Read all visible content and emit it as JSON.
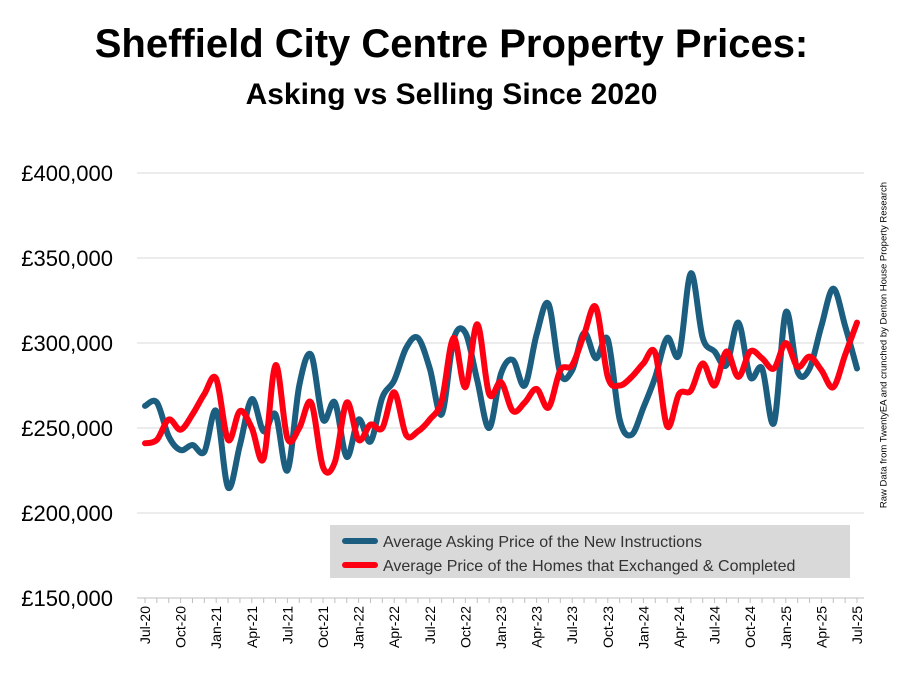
{
  "chart_data": {
    "type": "line",
    "title": "Sheffield City Centre Property Prices:",
    "subtitle": "Asking vs Selling Since 2020",
    "xlabel": "",
    "ylabel": "",
    "ylim": [
      150000,
      400000
    ],
    "yticks": [
      "£150,000",
      "£200,000",
      "£250,000",
      "£300,000",
      "£350,000",
      "£400,000"
    ],
    "ytick_values": [
      150000,
      200000,
      250000,
      300000,
      350000,
      400000
    ],
    "xtick_labels": [
      "Jul-20",
      "Oct-20",
      "Jan-21",
      "Apr-21",
      "Jul-21",
      "Oct-21",
      "Jan-22",
      "Apr-22",
      "Jul-22",
      "Oct-22",
      "Jan-23",
      "Apr-23",
      "Jul-23",
      "Oct-23",
      "Jan-24",
      "Apr-24",
      "Jul-24",
      "Oct-24",
      "Jan-25",
      "Apr-25",
      "Jul-25"
    ],
    "x_start": "Jul-20",
    "x_end": "Jul-25",
    "x_frequency": "monthly",
    "grid": true,
    "legend_placement": "bottom-right",
    "series": [
      {
        "name": "Average Asking Price of the New Instructions",
        "color": "#1b5e80",
        "values": [
          263000,
          265000,
          245000,
          237000,
          240000,
          236000,
          260000,
          215000,
          240000,
          267000,
          248000,
          258000,
          225000,
          275000,
          293000,
          255000,
          265000,
          233000,
          255000,
          242000,
          268000,
          278000,
          297000,
          303000,
          285000,
          258000,
          302000,
          306000,
          278000,
          250000,
          282000,
          290000,
          275000,
          305000,
          323000,
          282000,
          284000,
          306000,
          291000,
          302000,
          255000,
          246000,
          262000,
          280000,
          303000,
          293000,
          341000,
          303000,
          295000,
          287000,
          312000,
          280000,
          285000,
          253000,
          318000,
          283000,
          285000,
          310000,
          332000,
          310000,
          285000
        ]
      },
      {
        "name": "Average Price of the Homes that Exchanged & Completed",
        "color": "#ff0013",
        "values": [
          241000,
          243000,
          255000,
          249000,
          258000,
          270000,
          279000,
          243000,
          260000,
          250000,
          232000,
          287000,
          244000,
          250000,
          265000,
          227000,
          230000,
          265000,
          243000,
          252000,
          250000,
          271000,
          246000,
          248000,
          255000,
          266000,
          303000,
          274000,
          311000,
          270000,
          277000,
          260000,
          265000,
          273000,
          262000,
          284000,
          287000,
          305000,
          321000,
          280000,
          275000,
          280000,
          288000,
          294000,
          251000,
          270000,
          272000,
          288000,
          275000,
          295000,
          280000,
          295000,
          291000,
          285000,
          300000,
          286000,
          292000,
          284000,
          274000,
          293000,
          312000
        ]
      }
    ]
  },
  "source_note": "Raw Data from TwentyEA and crunched by Denton House Property Research"
}
